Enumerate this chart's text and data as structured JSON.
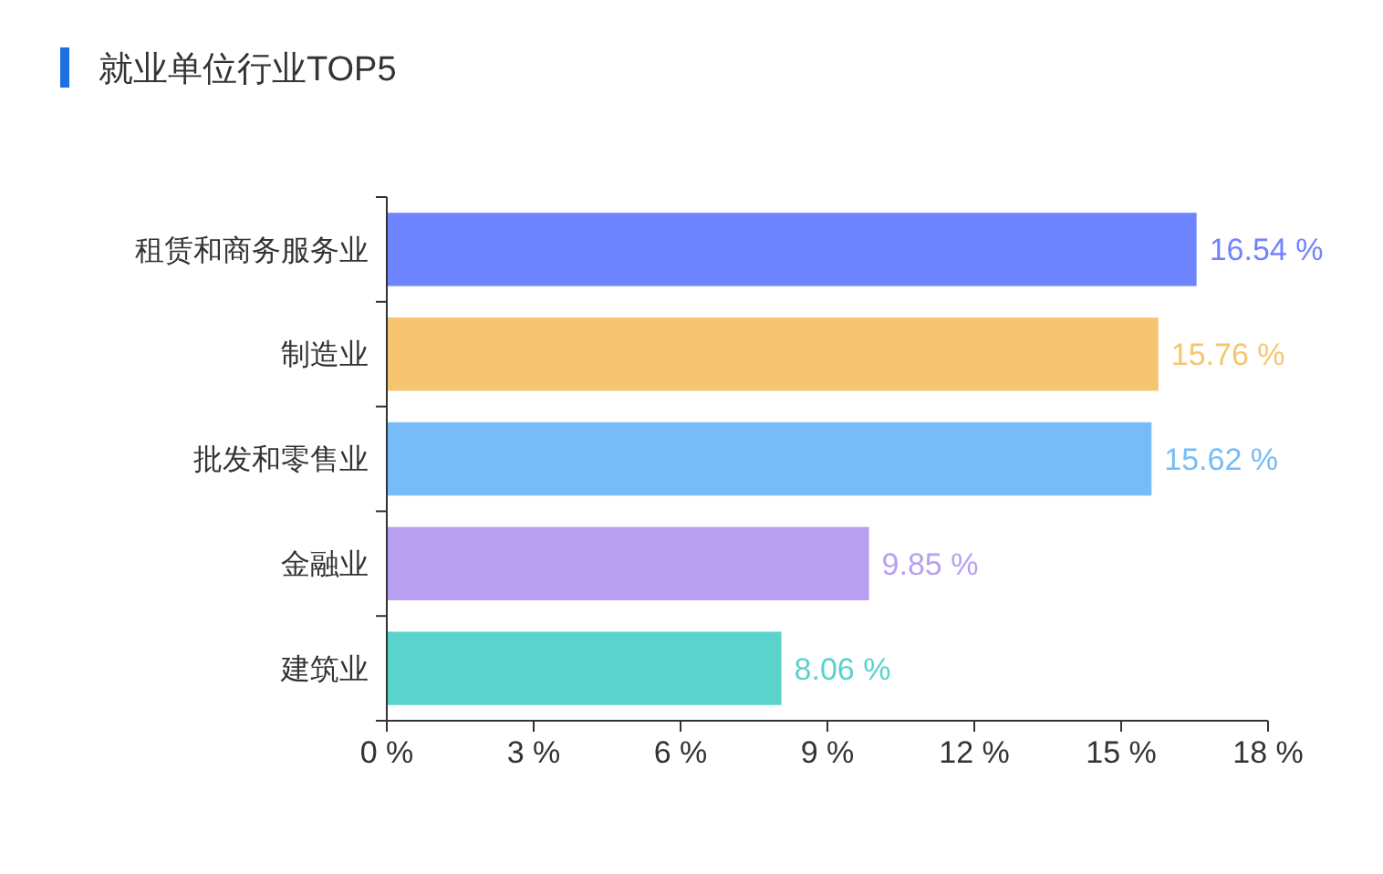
{
  "chart_data": {
    "type": "bar",
    "orientation": "horizontal",
    "title": "就业单位行业TOP5",
    "categories": [
      "租赁和商务服务业",
      "制造业",
      "批发和零售业",
      "金融业",
      "建筑业"
    ],
    "values": [
      16.54,
      15.76,
      15.62,
      9.85,
      8.06
    ],
    "colors": [
      "#6f84ff",
      "#f6c572",
      "#77bcf8",
      "#b89ff0",
      "#5ad3cc"
    ],
    "value_labels": [
      "16.54 %",
      "15.76 %",
      "15.62 %",
      "9.85 %",
      "8.06 %"
    ],
    "xlim": [
      0,
      18
    ],
    "xticks": [
      {
        "value": 0,
        "label": "0 %"
      },
      {
        "value": 3,
        "label": "3 %"
      },
      {
        "value": 6,
        "label": "6 %"
      },
      {
        "value": 9,
        "label": "9 %"
      },
      {
        "value": 12,
        "label": "12 %"
      },
      {
        "value": 15,
        "label": "15 %"
      },
      {
        "value": 18,
        "label": "18 %"
      }
    ],
    "grid": false
  }
}
